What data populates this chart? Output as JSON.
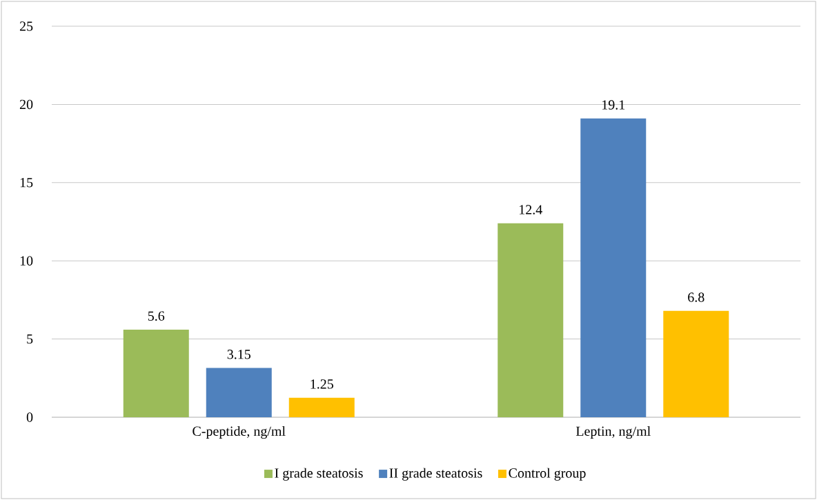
{
  "chart_data": {
    "type": "bar",
    "categories": [
      "C-peptide, ng/ml",
      "Leptin, ng/ml"
    ],
    "series": [
      {
        "name": "I grade steatosis",
        "color": "#9bbb59",
        "values": [
          5.6,
          12.4
        ]
      },
      {
        "name": "II grade steatosis",
        "color": "#4f81bd",
        "values": [
          3.15,
          19.1
        ]
      },
      {
        "name": "Control group",
        "color": "#ffc000",
        "values": [
          1.25,
          6.8
        ]
      }
    ],
    "ylim": [
      0,
      25
    ],
    "yticks": [
      0,
      5,
      10,
      15,
      20,
      25
    ],
    "grid": "y",
    "legend": "bottom",
    "data_labels": true
  }
}
